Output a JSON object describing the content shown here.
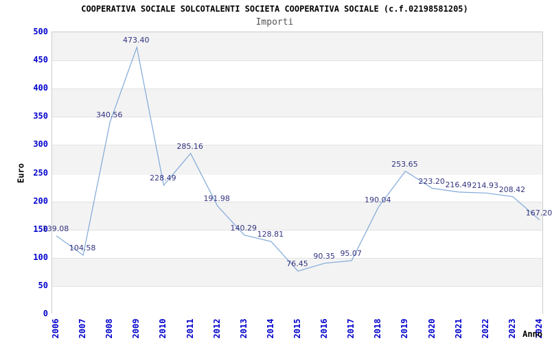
{
  "chart_data": {
    "type": "line",
    "title": "COOPERATIVA SOCIALE SOLCOTALENTI SOCIETA COOPERATIVA SOCIALE (c.f.02198581205)",
    "subtitle": "Importi",
    "xlabel": "Anno",
    "ylabel": "Euro",
    "ylim": [
      0,
      500
    ],
    "ytick_step": 50,
    "grid": "horizontal-bands-alternating",
    "legend": "none",
    "categories": [
      "2006",
      "2007",
      "2008",
      "2009",
      "2010",
      "2011",
      "2012",
      "2013",
      "2014",
      "2015",
      "2016",
      "2017",
      "2018",
      "2019",
      "2020",
      "2021",
      "2022",
      "2023",
      "2024"
    ],
    "values": [
      139.08,
      104.58,
      340.56,
      473.4,
      228.49,
      285.16,
      191.98,
      140.29,
      128.81,
      76.45,
      90.35,
      95.07,
      190.04,
      253.65,
      223.2,
      216.49,
      214.93,
      208.42,
      167.2
    ],
    "point_labels": [
      "139.08",
      "104.58",
      "340.56",
      "473.40",
      "228.49",
      "285.16",
      "191.98",
      "140.29",
      "128.81",
      "76.45",
      "90.35",
      "95.07",
      "190.04",
      "253.65",
      "223.20",
      "216.49",
      "214.93",
      "208.42",
      "167.20"
    ],
    "colors": {
      "tick_label": "#0000cc",
      "point_label": "#333380",
      "line": "#7fa8d9",
      "band_gray": "#f3f3f3",
      "gridline": "#e2e2e2",
      "plot_border": "#cccccc",
      "title": "#000000",
      "subtitle": "#555555"
    }
  }
}
